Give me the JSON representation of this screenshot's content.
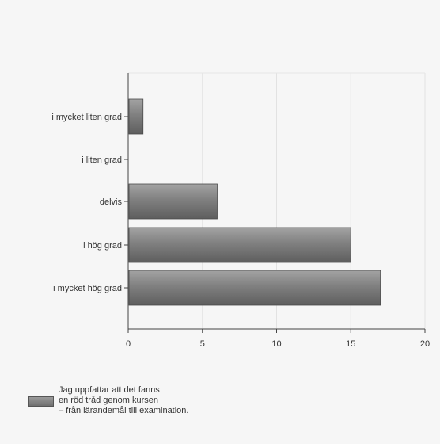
{
  "chart_data": {
    "type": "bar",
    "orientation": "horizontal",
    "categories": [
      "i mycket liten grad",
      "i liten grad",
      "delvis",
      "i hög grad",
      "i mycket hög grad"
    ],
    "series": [
      {
        "name": "Jag uppfattar att det fanns en röd tråd genom kursen – från lärandemål till examination.",
        "values": [
          1,
          0,
          6,
          15,
          17
        ]
      }
    ],
    "xlim": [
      0,
      20
    ],
    "xticks": [
      0,
      5,
      10,
      15,
      20
    ],
    "grid": true,
    "legend_position": "bottom-left",
    "bar_color": "#808080"
  },
  "legend": {
    "lines": [
      "Jag uppfattar att det fanns",
      "en röd tråd genom kursen",
      "– från lärandemål till examination."
    ]
  }
}
